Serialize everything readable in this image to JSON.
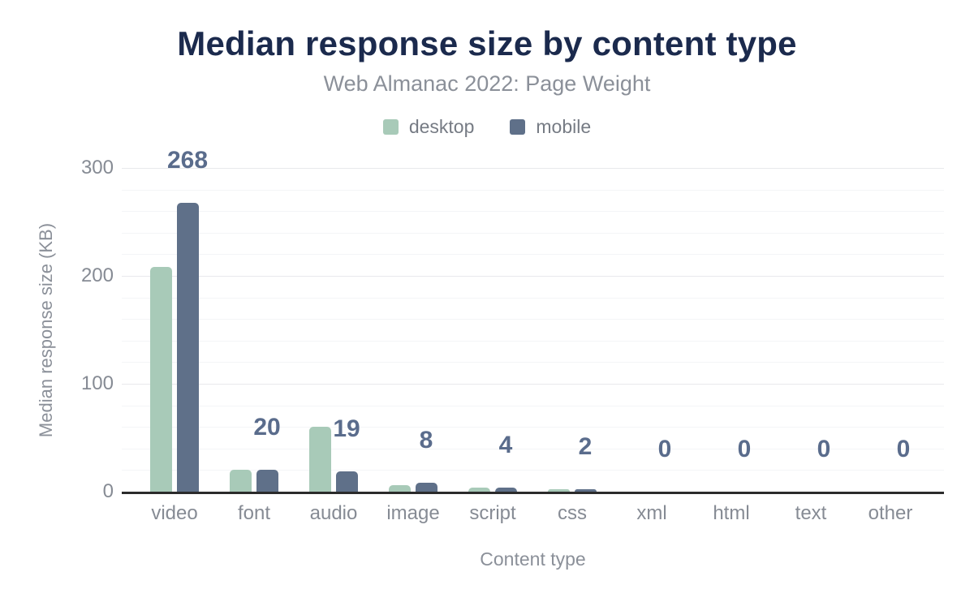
{
  "colors": {
    "title": "#1b2a4d",
    "subtitle": "#8b9099",
    "axis_text": "#868b94",
    "data_label": "#5a6c8c",
    "axis_line": "#2b2b2b",
    "grid_major": "#e8e9ec",
    "grid_minor": "#f4f5f7",
    "background": "#ffffff",
    "desktop": "#a8cab8",
    "mobile": "#5f7089"
  },
  "chart_data": {
    "type": "bar",
    "title": "Median response size by content type",
    "subtitle": "Web Almanac 2022: Page Weight",
    "categories": [
      "video",
      "font",
      "audio",
      "image",
      "script",
      "css",
      "xml",
      "html",
      "text",
      "other"
    ],
    "series": [
      {
        "name": "desktop",
        "color": "#a8cab8",
        "values": [
          208,
          20,
          60,
          6,
          4,
          2,
          0,
          0,
          0,
          0
        ]
      },
      {
        "name": "mobile",
        "color": "#5f7089",
        "values": [
          268,
          20,
          19,
          8,
          4,
          2,
          0,
          0,
          0,
          0
        ]
      }
    ],
    "bar_labels": [
      "268",
      "20",
      "19",
      "8",
      "4",
      "2",
      "0",
      "0",
      "0",
      "0"
    ],
    "data_labels_series": "mobile",
    "xlabel": "Content type",
    "ylabel": "Median response size (KB)",
    "yticks": [
      0,
      100,
      200,
      300
    ],
    "ylim": [
      0,
      300
    ],
    "grid": "horizontal major at 100s, faint minor every 20",
    "legend_position": "top-center"
  }
}
